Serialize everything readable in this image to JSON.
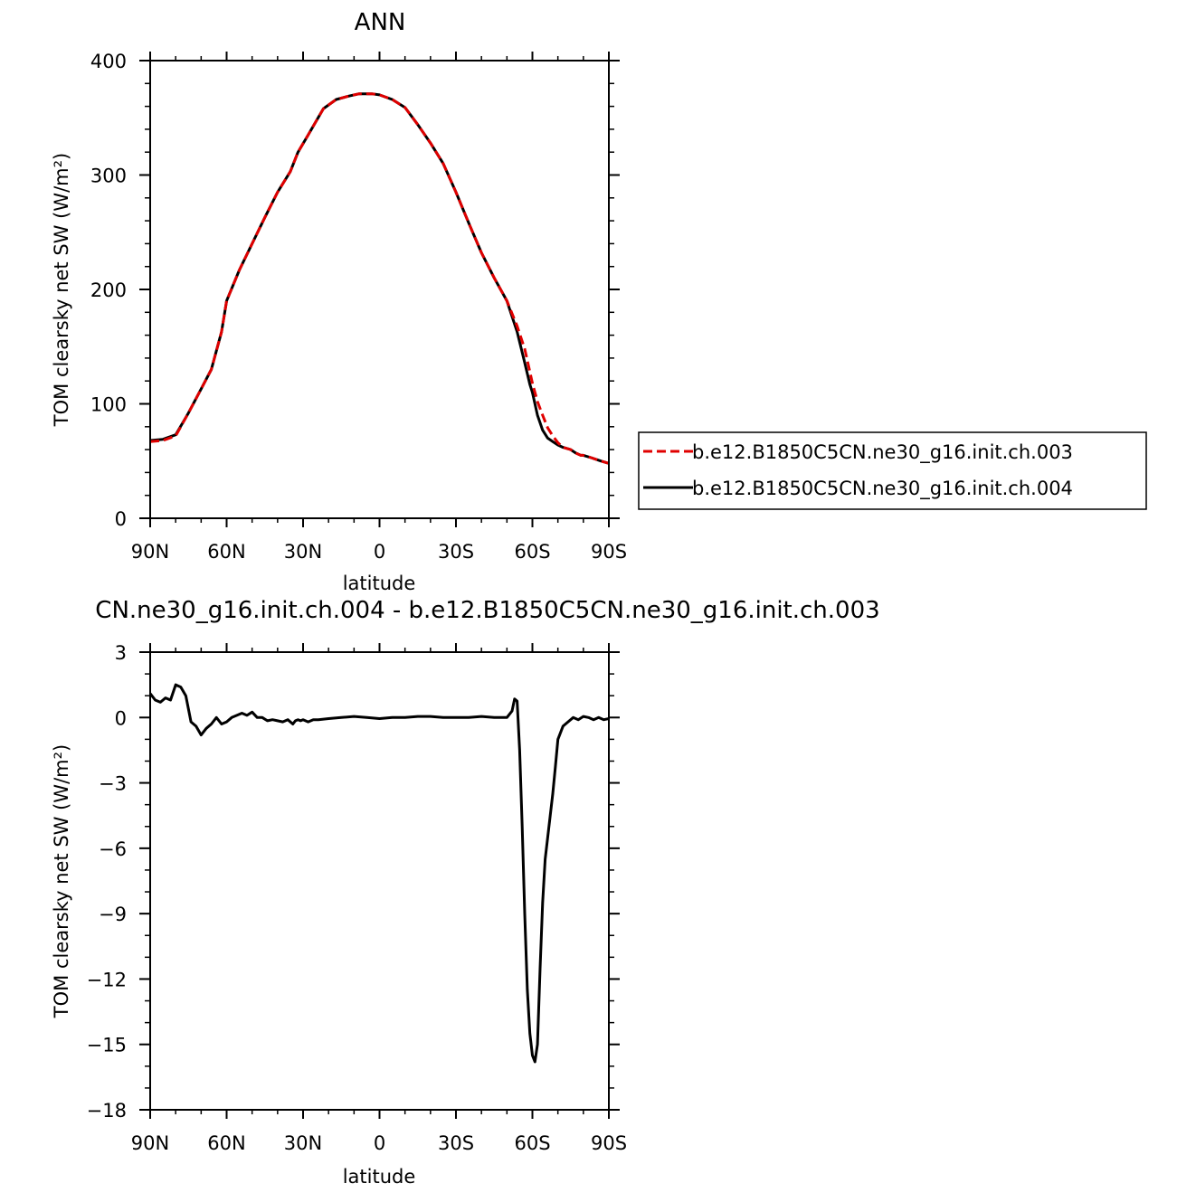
{
  "chart_data": [
    {
      "type": "line",
      "title": "ANN",
      "xlabel": "latitude",
      "ylabel": "TOM clearsky net SW (W/m²)",
      "xlim": [
        90,
        -90
      ],
      "ylim": [
        0,
        400
      ],
      "x_ticks": [
        90,
        60,
        30,
        0,
        -30,
        -60,
        -90
      ],
      "x_tick_labels": [
        "90N",
        "60N",
        "30N",
        "0",
        "30S",
        "60S",
        "90S"
      ],
      "y_ticks": [
        0,
        100,
        200,
        300,
        400
      ],
      "y_tick_labels": [
        "0",
        "100",
        "200",
        "300",
        "400"
      ],
      "legend_position": "right",
      "series": [
        {
          "name": "b.e12.B1850C5CN.ne30_g16.init.ch.003",
          "color": "#e00000",
          "dash": "dashed",
          "x": [
            90,
            85,
            80,
            75,
            70,
            66,
            62,
            60,
            55,
            50,
            45,
            40,
            35,
            32,
            28,
            22,
            17,
            12,
            8,
            3,
            0,
            -5,
            -10,
            -15,
            -20,
            -25,
            -30,
            -35,
            -40,
            -45,
            -50,
            -54,
            -57,
            -59,
            -60,
            -62,
            -64,
            -66,
            -68,
            -70,
            -72,
            -75,
            -77,
            -79,
            -80,
            -83,
            -87,
            -90
          ],
          "y": [
            67,
            68,
            72,
            92,
            113,
            130,
            163,
            190,
            217,
            240,
            263,
            285,
            303,
            320,
            335,
            358,
            366,
            369,
            371,
            371,
            370,
            366,
            359,
            344,
            328,
            310,
            285,
            258,
            232,
            210,
            190,
            168,
            148,
            128,
            118,
            102,
            90,
            79,
            72,
            66,
            62,
            60,
            57,
            55,
            55,
            53,
            50,
            48
          ]
        },
        {
          "name": "b.e12.B1850C5CN.ne30_g16.init.ch.004",
          "color": "#000000",
          "dash": "solid",
          "x": [
            90,
            85,
            80,
            75,
            70,
            66,
            62,
            60,
            55,
            50,
            45,
            40,
            35,
            32,
            28,
            22,
            17,
            12,
            8,
            3,
            0,
            -5,
            -10,
            -15,
            -20,
            -25,
            -30,
            -35,
            -40,
            -45,
            -50,
            -54,
            -57,
            -59,
            -60,
            -62,
            -64,
            -66,
            -68,
            -70,
            -72,
            -75,
            -77,
            -79,
            -80,
            -83,
            -87,
            -90
          ],
          "y": [
            68,
            69,
            73,
            92,
            113,
            130,
            163,
            190,
            217,
            240,
            263,
            285,
            303,
            320,
            335,
            358,
            366,
            369,
            371,
            371,
            370,
            366,
            359,
            344,
            328,
            310,
            285,
            258,
            232,
            210,
            190,
            163,
            136,
            117,
            110,
            90,
            77,
            70,
            67,
            64,
            62,
            60,
            57,
            55,
            55,
            53,
            50,
            48
          ]
        }
      ]
    },
    {
      "type": "line",
      "title": "CN.ne30_g16.init.ch.004 - b.e12.B1850C5CN.ne30_g16.init.ch.003",
      "xlabel": "latitude",
      "ylabel": "TOM clearsky net SW (W/m²)",
      "xlim": [
        90,
        -90
      ],
      "ylim": [
        -18,
        3
      ],
      "x_ticks": [
        90,
        60,
        30,
        0,
        -30,
        -60,
        -90
      ],
      "x_tick_labels": [
        "90N",
        "60N",
        "30N",
        "0",
        "30S",
        "60S",
        "90S"
      ],
      "y_ticks": [
        3,
        0,
        -3,
        -6,
        -9,
        -12,
        -15,
        -18
      ],
      "y_tick_labels": [
        "3",
        "0",
        "−3",
        "−6",
        "−9",
        "−12",
        "−15",
        "−18"
      ],
      "series": [
        {
          "color": "#000000",
          "x": [
            90,
            88,
            86,
            84,
            82,
            80,
            78,
            76,
            74,
            72,
            70,
            68,
            66,
            64,
            62,
            60,
            58,
            56,
            54,
            52,
            50,
            48,
            46,
            44,
            42,
            40,
            38,
            36,
            34,
            33,
            32,
            31,
            30,
            28,
            26,
            24,
            20,
            15,
            10,
            5,
            0,
            -5,
            -10,
            -15,
            -20,
            -25,
            -30,
            -35,
            -40,
            -45,
            -50,
            -52,
            -53,
            -54,
            -55,
            -56,
            -57,
            -58,
            -59,
            -60,
            -61,
            -62,
            -63,
            -64,
            -65,
            -66,
            -67,
            -68,
            -69,
            -70,
            -72,
            -74,
            -76,
            -78,
            -80,
            -82,
            -84,
            -86,
            -88,
            -90
          ],
          "y": [
            1.1,
            0.8,
            0.7,
            0.9,
            0.8,
            1.5,
            1.4,
            1.0,
            -0.2,
            -0.4,
            -0.8,
            -0.5,
            -0.3,
            0.0,
            -0.3,
            -0.2,
            0.0,
            0.1,
            0.2,
            0.1,
            0.25,
            0.0,
            0.0,
            -0.15,
            -0.1,
            -0.15,
            -0.2,
            -0.1,
            -0.3,
            -0.15,
            -0.1,
            -0.15,
            -0.1,
            -0.2,
            -0.1,
            -0.1,
            -0.05,
            0.0,
            0.05,
            0.0,
            -0.05,
            0.0,
            0.0,
            0.05,
            0.05,
            0.0,
            0.0,
            0.0,
            0.05,
            0.0,
            0.0,
            0.3,
            0.85,
            0.75,
            -1.5,
            -5.0,
            -9.0,
            -12.5,
            -14.5,
            -15.5,
            -15.8,
            -15.0,
            -11.5,
            -8.5,
            -6.5,
            -5.5,
            -4.5,
            -3.5,
            -2.3,
            -1.0,
            -0.4,
            -0.2,
            0.0,
            -0.1,
            0.05,
            0.0,
            -0.1,
            0.0,
            -0.1,
            -0.05
          ]
        }
      ]
    }
  ]
}
